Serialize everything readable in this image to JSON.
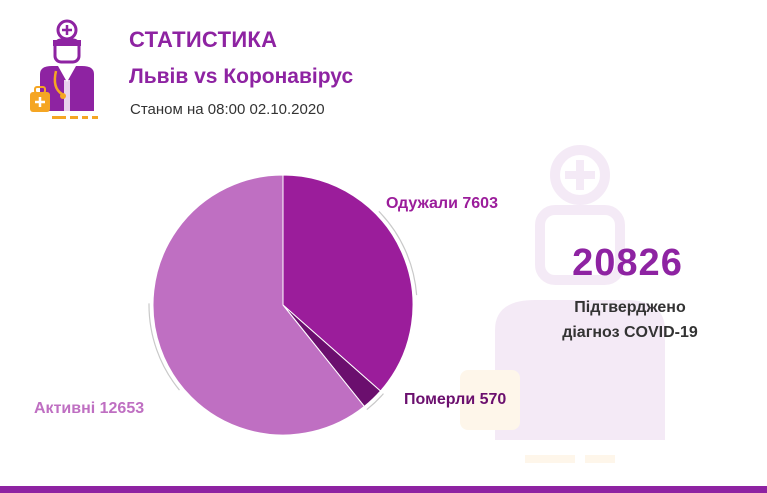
{
  "header": {
    "title": "СТАТИСТИКА",
    "subtitle": "Львів vs Коронавірус",
    "as_of": "Станом на 08:00 02.10.2020"
  },
  "total": {
    "value": "20826",
    "caption_line1": "Підтверджено",
    "caption_line2": "діагноз COVID-19"
  },
  "logo": {
    "icon": "doctor-icon"
  },
  "colors": {
    "brand": "#8e23a2",
    "recovered": "#9b1d9b",
    "died": "#6b0f6e",
    "active": "#bf6fc2",
    "footer": "#8e23a2",
    "logo_orange": "#f5a623"
  },
  "chart_data": {
    "type": "pie",
    "slices": [
      {
        "label": "Одужали",
        "value": 7603,
        "display": "Одужали 7603",
        "color": "#9b1d9b"
      },
      {
        "label": "Померли",
        "value": 570,
        "display": "Померли 570",
        "color": "#6b0f6e"
      },
      {
        "label": "Активні",
        "value": 12653,
        "display": "Активні 12653",
        "color": "#bf6fc2"
      }
    ]
  }
}
